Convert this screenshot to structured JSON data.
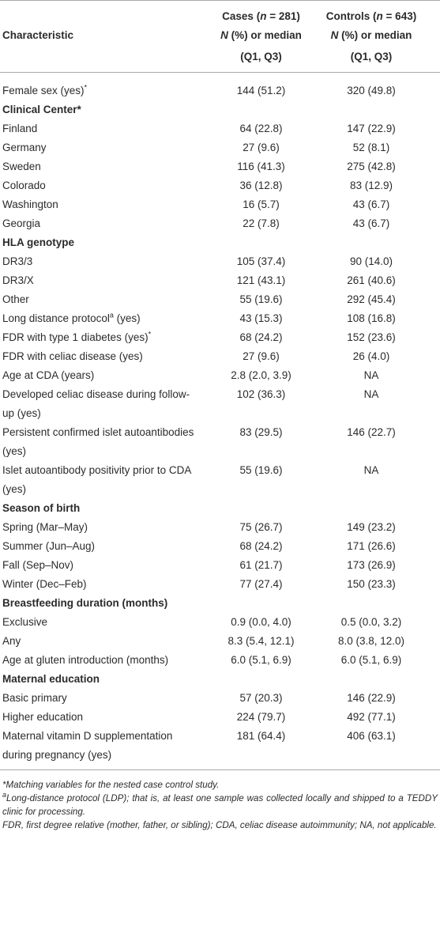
{
  "table": {
    "header": {
      "characteristic": "Characteristic",
      "columns": [
        {
          "title": [
            {
              "text": "Cases ("
            },
            {
              "text": "n",
              "style": "italic"
            },
            {
              "text": " = 281)"
            }
          ],
          "subtitle": [
            {
              "text": "N",
              "style": "italic"
            },
            {
              "text": " (%) or median (Q1, Q3)"
            }
          ]
        },
        {
          "title": [
            {
              "text": "Controls ("
            },
            {
              "text": "n",
              "style": "italic"
            },
            {
              "text": " = 643)"
            }
          ],
          "subtitle": [
            {
              "text": "N",
              "style": "italic"
            },
            {
              "text": " (%) or median (Q1, Q3)"
            }
          ]
        }
      ]
    },
    "rows": [
      {
        "label": [
          {
            "text": "Female sex (yes)"
          },
          {
            "text": "*",
            "style": "sup"
          }
        ],
        "cases": "144 (51.2)",
        "controls": "320 (49.8)"
      },
      {
        "label": "Clinical Center*",
        "section": true
      },
      {
        "label": "Finland",
        "cases": "64 (22.8)",
        "controls": "147 (22.9)"
      },
      {
        "label": "Germany",
        "cases": "27 (9.6)",
        "controls": "52 (8.1)"
      },
      {
        "label": "Sweden",
        "cases": "116 (41.3)",
        "controls": "275 (42.8)"
      },
      {
        "label": "Colorado",
        "cases": "36 (12.8)",
        "controls": "83 (12.9)"
      },
      {
        "label": "Washington",
        "cases": "16 (5.7)",
        "controls": "43 (6.7)"
      },
      {
        "label": "Georgia",
        "cases": "22 (7.8)",
        "controls": "43 (6.7)"
      },
      {
        "label": "HLA genotype",
        "section": true
      },
      {
        "label": "DR3/3",
        "cases": "105 (37.4)",
        "controls": "90 (14.0)"
      },
      {
        "label": "DR3/X",
        "cases": "121 (43.1)",
        "controls": "261 (40.6)"
      },
      {
        "label": "Other",
        "cases": "55 (19.6)",
        "controls": "292 (45.4)"
      },
      {
        "label": [
          {
            "text": "Long distance protocol"
          },
          {
            "text": "a",
            "style": "sup"
          },
          {
            "text": " (yes)"
          }
        ],
        "cases": "43 (15.3)",
        "controls": "108 (16.8)"
      },
      {
        "label": [
          {
            "text": "FDR with type 1 diabetes (yes)"
          },
          {
            "text": "*",
            "style": "sup"
          }
        ],
        "cases": "68 (24.2)",
        "controls": "152 (23.6)"
      },
      {
        "label": "FDR with celiac disease (yes)",
        "cases": "27 (9.6)",
        "controls": "26 (4.0)"
      },
      {
        "label": "Age at CDA (years)",
        "cases": "2.8 (2.0, 3.9)",
        "controls": "NA"
      },
      {
        "label": "Developed celiac disease during follow-up (yes)",
        "cases": "102 (36.3)",
        "controls": "NA"
      },
      {
        "label": "Persistent confirmed islet autoantibodies (yes)",
        "cases": "83 (29.5)",
        "controls": "146 (22.7)"
      },
      {
        "label": "Islet autoantibody positivity prior to CDA (yes)",
        "cases": "55 (19.6)",
        "controls": "NA"
      },
      {
        "label": "Season of birth",
        "section": true
      },
      {
        "label": "Spring (Mar–May)",
        "cases": "75 (26.7)",
        "controls": "149 (23.2)"
      },
      {
        "label": "Summer (Jun–Aug)",
        "cases": "68 (24.2)",
        "controls": "171 (26.6)"
      },
      {
        "label": "Fall (Sep–Nov)",
        "cases": "61 (21.7)",
        "controls": "173 (26.9)"
      },
      {
        "label": "Winter (Dec–Feb)",
        "cases": "77 (27.4)",
        "controls": "150 (23.3)"
      },
      {
        "label": "Breastfeeding duration (months)",
        "section": true
      },
      {
        "label": "Exclusive",
        "cases": "0.9 (0.0, 4.0)",
        "controls": "0.5 (0.0, 3.2)"
      },
      {
        "label": "Any",
        "cases": "8.3 (5.4, 12.1)",
        "controls": "8.0 (3.8, 12.0)"
      },
      {
        "label": "Age at gluten introduction (months)",
        "cases": "6.0 (5.1, 6.9)",
        "controls": "6.0 (5.1, 6.9)"
      },
      {
        "label": "Maternal education",
        "section": true
      },
      {
        "label": "Basic primary",
        "cases": "57 (20.3)",
        "controls": "146 (22.9)"
      },
      {
        "label": "Higher education",
        "cases": "224 (79.7)",
        "controls": "492 (77.1)"
      },
      {
        "label": "Maternal vitamin D supplementation during pregnancy (yes)",
        "cases": "181 (64.4)",
        "controls": "406 (63.1)"
      }
    ],
    "notes": [
      [
        {
          "text": "*Matching variables for the nested case control study."
        }
      ],
      [
        {
          "text": "a",
          "style": "sup"
        },
        {
          "text": "Long-distance protocol (LDP); that is, at least one sample was collected locally and shipped to a TEDDY clinic for processing."
        }
      ],
      [
        {
          "text": "FDR, first degree relative (mother, father, or sibling); CDA, celiac disease autoimmunity; NA, not applicable."
        }
      ]
    ]
  }
}
